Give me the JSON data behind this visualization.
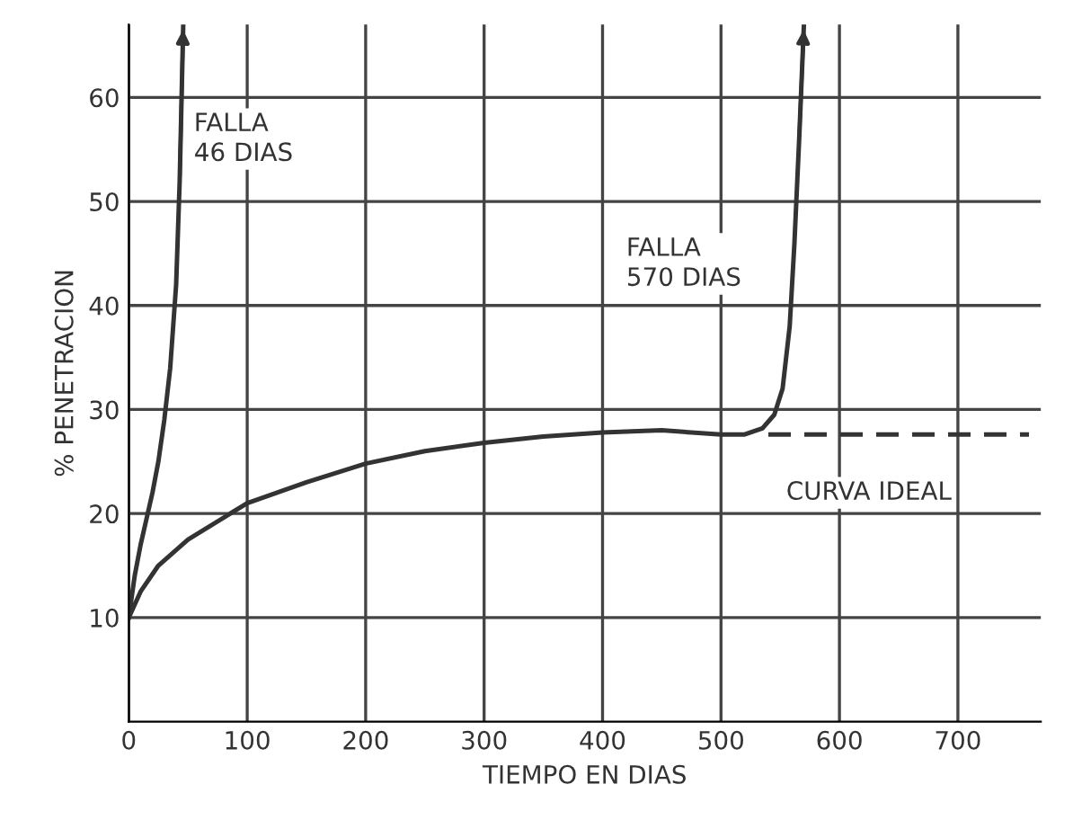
{
  "chart_data": {
    "type": "line",
    "xlabel": "TIEMPO EN DIAS",
    "ylabel": "% PENETRACION",
    "xlim": [
      0,
      770
    ],
    "ylim": [
      0,
      67
    ],
    "xticks": [
      0,
      100,
      200,
      300,
      400,
      500,
      600,
      700
    ],
    "yticks": [
      10,
      20,
      30,
      40,
      50,
      60
    ],
    "grid": true,
    "marker": "none",
    "series": [
      {
        "name": "FALLA\n46 DIAS",
        "color": "#333333",
        "line_style": "solid",
        "x": [
          0,
          5,
          10,
          15,
          20,
          25,
          30,
          35,
          40,
          43,
          46
        ],
        "values": [
          10,
          14,
          17,
          19.5,
          22,
          25,
          29,
          34,
          42,
          52,
          67
        ]
      },
      {
        "name": "FALLA\n570 DIAS",
        "color": "#333333",
        "line_style": "solid",
        "x": [
          0,
          10,
          25,
          50,
          100,
          150,
          200,
          250,
          300,
          350,
          400,
          450,
          500,
          520,
          535,
          545,
          552,
          558,
          562,
          566,
          570
        ],
        "values": [
          10,
          12.5,
          15,
          17.5,
          21,
          23,
          24.8,
          26,
          26.8,
          27.4,
          27.8,
          28,
          27.6,
          27.6,
          28.2,
          29.5,
          32,
          38,
          46,
          56,
          67
        ]
      },
      {
        "name": "CURVA IDEAL",
        "color": "#333333",
        "line_style": "dashed",
        "x": [
          540,
          760
        ],
        "values": [
          27.6,
          27.6
        ]
      }
    ]
  }
}
